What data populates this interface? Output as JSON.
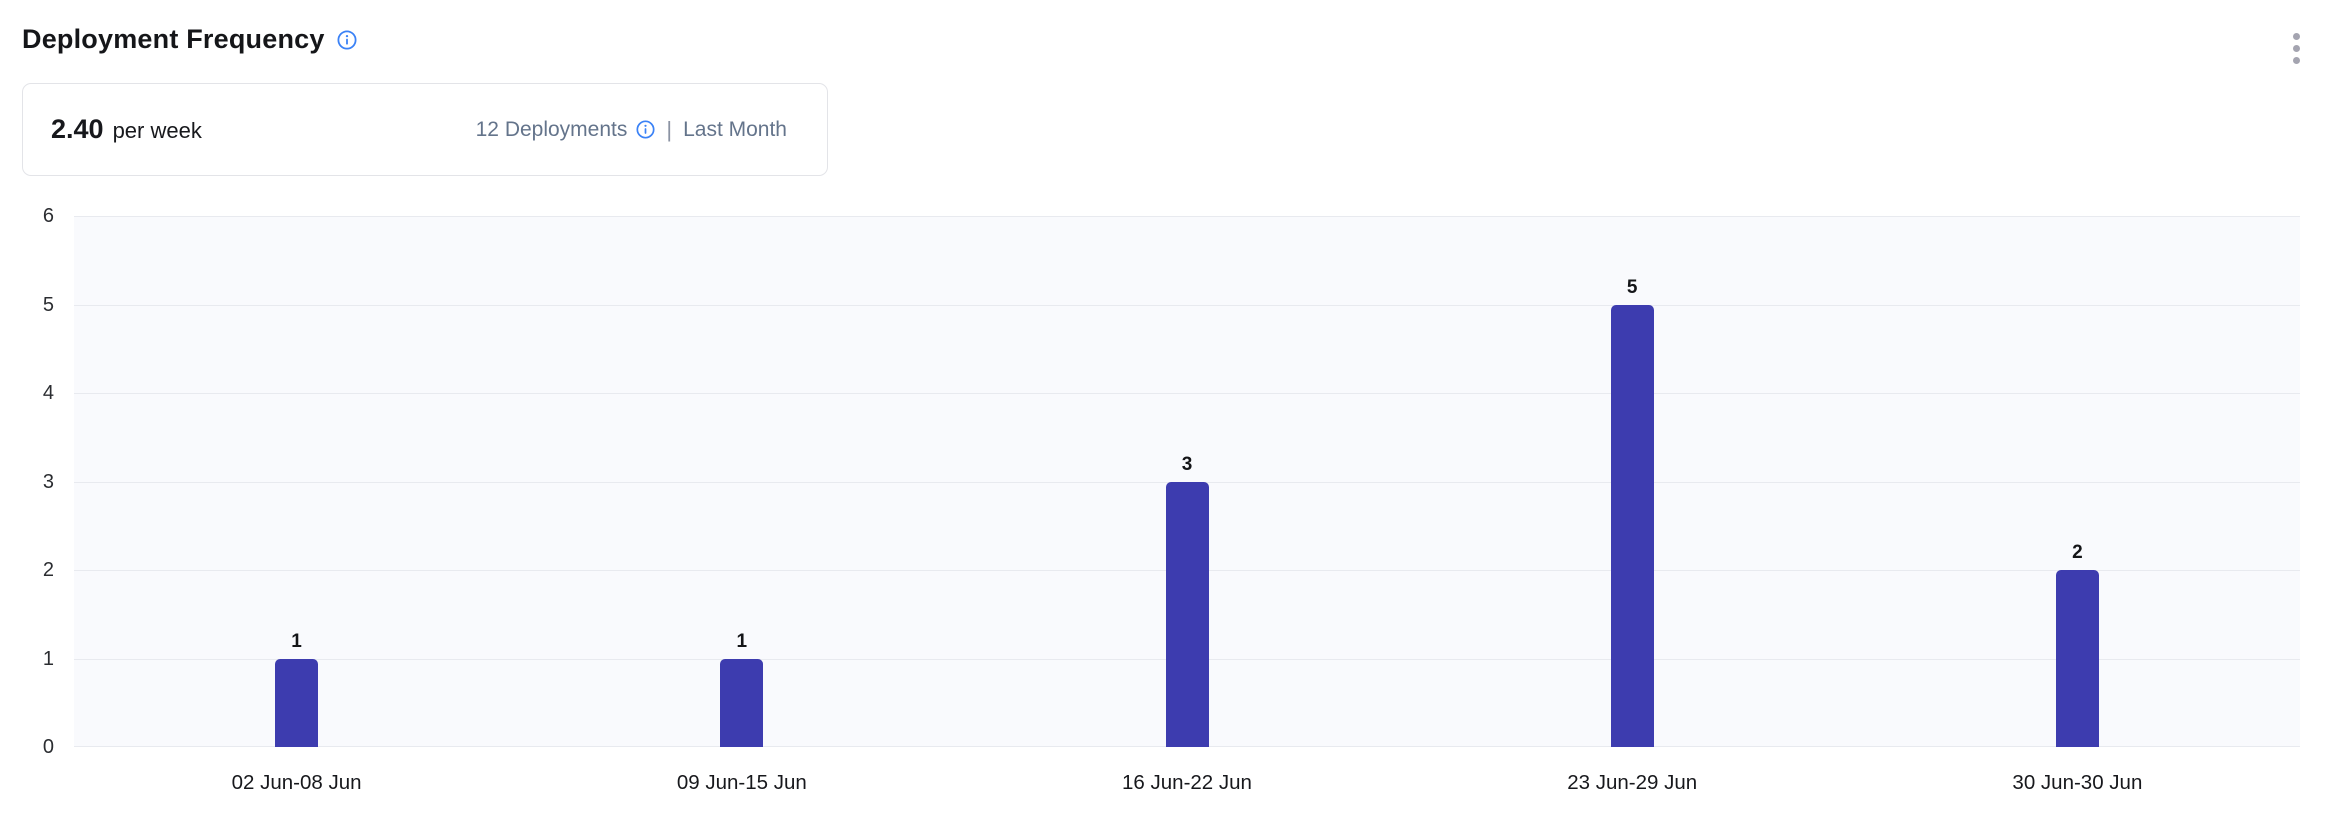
{
  "header": {
    "title": "Deployment Frequency",
    "info_icon": "info-circle",
    "menu_icon": "kebab-vertical-menu"
  },
  "summary": {
    "value": "2.40",
    "unit": "per week",
    "deployments_label": "12 Deployments",
    "separator": "|",
    "period_label": "Last Month"
  },
  "colors": {
    "bar": "#3d3caf",
    "info_icon_blue": "#3b82f6",
    "plot_background": "#f9fafd",
    "gridline": "#e8eaef",
    "muted_text": "#64748b",
    "title_text": "#151619",
    "kebab_dot": "#a4a4b0"
  },
  "chart_data": {
    "type": "bar",
    "title": "Deployment Frequency",
    "categories": [
      "02 Jun-08 Jun",
      "09 Jun-15 Jun",
      "16 Jun-22 Jun",
      "23 Jun-29 Jun",
      "30 Jun-30 Jun"
    ],
    "values": [
      1,
      1,
      3,
      5,
      2
    ],
    "xlabel": "",
    "ylabel": "",
    "ylim": [
      0,
      6
    ],
    "yticks": [
      0,
      1,
      2,
      3,
      4,
      5,
      6
    ],
    "grid": true,
    "legend": false,
    "value_labels_shown": true,
    "bar_color": "#3d3caf"
  }
}
